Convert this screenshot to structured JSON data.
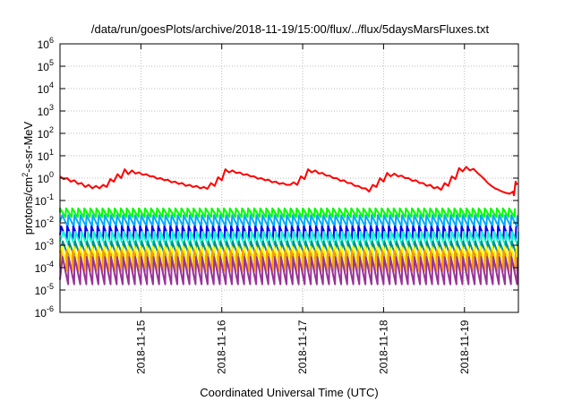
{
  "chart_data": {
    "type": "line",
    "title": "/data/run/goesPlots/archive/2018-11-19/15:00/flux/../flux/5daysMarsFluxes.txt",
    "xlabel": "Coordinated Universal Time (UTC)",
    "ylabel_parts": [
      "protons/cm",
      "2",
      "-s-sr-MeV"
    ],
    "y_scale": "log",
    "ylim": [
      1e-06,
      1000000.0
    ],
    "xlim": [
      "2018-11-14T00:00",
      "2018-11-19T16:00"
    ],
    "grid": true,
    "y_ticks": [
      {
        "base": "10",
        "exp": "-6",
        "value": 1e-06
      },
      {
        "base": "10",
        "exp": "-5",
        "value": 1e-05
      },
      {
        "base": "10",
        "exp": "-4",
        "value": 0.0001
      },
      {
        "base": "10",
        "exp": "-3",
        "value": 0.001
      },
      {
        "base": "10",
        "exp": "-2",
        "value": 0.01
      },
      {
        "base": "10",
        "exp": "-1",
        "value": 0.1
      },
      {
        "base": "10",
        "exp": "0",
        "value": 1
      },
      {
        "base": "10",
        "exp": "1",
        "value": 10
      },
      {
        "base": "10",
        "exp": "2",
        "value": 100
      },
      {
        "base": "10",
        "exp": "3",
        "value": 1000
      },
      {
        "base": "10",
        "exp": "4",
        "value": 10000
      },
      {
        "base": "10",
        "exp": "5",
        "value": 100000
      },
      {
        "base": "10",
        "exp": "6",
        "value": 1000000
      }
    ],
    "x_ticks": [
      {
        "label": "2018-11-15",
        "value": "2018-11-15T00:00"
      },
      {
        "label": "2018-11-16",
        "value": "2018-11-16T00:00"
      },
      {
        "label": "2018-11-17",
        "value": "2018-11-17T00:00"
      },
      {
        "label": "2018-11-18",
        "value": "2018-11-18T00:00"
      },
      {
        "label": "2018-11-19",
        "value": "2018-11-19T00:00"
      }
    ],
    "series": [
      {
        "color": "#ff0000",
        "values": [
          [
            "2018-11-14T00:00",
            1.2
          ],
          [
            "2018-11-14T01:04",
            0.9
          ],
          [
            "2018-11-14T02:08",
            1.0
          ],
          [
            "2018-11-14T03:12",
            0.7
          ],
          [
            "2018-11-14T04:16",
            0.8
          ],
          [
            "2018-11-14T05:20",
            0.55
          ],
          [
            "2018-11-14T06:24",
            0.6
          ],
          [
            "2018-11-14T07:28",
            0.4
          ],
          [
            "2018-11-14T08:32",
            0.5
          ],
          [
            "2018-11-14T09:36",
            0.35
          ],
          [
            "2018-11-14T10:40",
            0.45
          ],
          [
            "2018-11-14T11:44",
            0.35
          ],
          [
            "2018-11-14T12:48",
            0.5
          ],
          [
            "2018-11-14T13:52",
            0.4
          ],
          [
            "2018-11-14T14:56",
            0.9
          ],
          [
            "2018-11-14T16:00",
            0.7
          ],
          [
            "2018-11-14T17:04",
            1.5
          ],
          [
            "2018-11-14T18:08",
            1.0
          ],
          [
            "2018-11-14T19:12",
            2.5
          ],
          [
            "2018-11-14T20:16",
            1.5
          ],
          [
            "2018-11-14T21:20",
            2.2
          ],
          [
            "2018-11-14T22:24",
            1.6
          ],
          [
            "2018-11-14T23:28",
            1.8
          ],
          [
            "2018-11-15T00:32",
            1.4
          ],
          [
            "2018-11-15T01:36",
            1.5
          ],
          [
            "2018-11-15T02:40",
            1.2
          ],
          [
            "2018-11-15T03:44",
            1.2
          ],
          [
            "2018-11-15T04:48",
            0.95
          ],
          [
            "2018-11-15T05:52",
            1.0
          ],
          [
            "2018-11-15T06:56",
            0.8
          ],
          [
            "2018-11-15T08:00",
            0.85
          ],
          [
            "2018-11-15T09:04",
            0.65
          ],
          [
            "2018-11-15T10:08",
            0.7
          ],
          [
            "2018-11-15T11:12",
            0.55
          ],
          [
            "2018-11-15T12:16",
            0.6
          ],
          [
            "2018-11-15T13:20",
            0.45
          ],
          [
            "2018-11-15T14:24",
            0.5
          ],
          [
            "2018-11-15T15:28",
            0.4
          ],
          [
            "2018-11-15T16:32",
            0.45
          ],
          [
            "2018-11-15T17:36",
            0.35
          ],
          [
            "2018-11-15T18:40",
            0.4
          ],
          [
            "2018-11-15T19:44",
            0.33
          ],
          [
            "2018-11-15T20:48",
            0.6
          ],
          [
            "2018-11-15T21:52",
            0.45
          ],
          [
            "2018-11-15T22:56",
            1.1
          ],
          [
            "2018-11-16T00:00",
            0.8
          ],
          [
            "2018-11-16T01:04",
            2.5
          ],
          [
            "2018-11-16T02:08",
            1.8
          ],
          [
            "2018-11-16T03:12",
            2.2
          ],
          [
            "2018-11-16T04:16",
            1.7
          ],
          [
            "2018-11-16T05:20",
            1.8
          ],
          [
            "2018-11-16T06:24",
            1.4
          ],
          [
            "2018-11-16T07:28",
            1.5
          ],
          [
            "2018-11-16T08:32",
            1.2
          ],
          [
            "2018-11-16T09:36",
            1.2
          ],
          [
            "2018-11-16T10:40",
            0.95
          ],
          [
            "2018-11-16T11:44",
            1.0
          ],
          [
            "2018-11-16T12:48",
            0.8
          ],
          [
            "2018-11-16T13:52",
            0.85
          ],
          [
            "2018-11-16T14:56",
            0.65
          ],
          [
            "2018-11-16T16:00",
            0.7
          ],
          [
            "2018-11-16T17:04",
            0.55
          ],
          [
            "2018-11-16T18:08",
            0.6
          ],
          [
            "2018-11-16T19:12",
            0.5
          ],
          [
            "2018-11-16T20:16",
            0.5
          ],
          [
            "2018-11-16T21:20",
            0.65
          ],
          [
            "2018-11-16T22:24",
            0.5
          ],
          [
            "2018-11-16T23:28",
            1.2
          ],
          [
            "2018-11-17T00:32",
            0.9
          ],
          [
            "2018-11-17T01:36",
            2.5
          ],
          [
            "2018-11-17T02:40",
            1.8
          ],
          [
            "2018-11-17T03:44",
            2.2
          ],
          [
            "2018-11-17T04:48",
            1.6
          ],
          [
            "2018-11-17T05:52",
            1.7
          ],
          [
            "2018-11-17T06:56",
            1.3
          ],
          [
            "2018-11-17T08:00",
            1.3
          ],
          [
            "2018-11-17T09:04",
            1.0
          ],
          [
            "2018-11-17T10:08",
            1.0
          ],
          [
            "2018-11-17T11:12",
            0.75
          ],
          [
            "2018-11-17T12:16",
            0.8
          ],
          [
            "2018-11-17T13:20",
            0.6
          ],
          [
            "2018-11-17T14:24",
            0.6
          ],
          [
            "2018-11-17T15:28",
            0.45
          ],
          [
            "2018-11-17T16:32",
            0.45
          ],
          [
            "2018-11-17T17:36",
            0.35
          ],
          [
            "2018-11-17T18:40",
            0.35
          ],
          [
            "2018-11-17T19:44",
            0.25
          ],
          [
            "2018-11-17T20:48",
            0.5
          ],
          [
            "2018-11-17T21:52",
            0.4
          ],
          [
            "2018-11-17T22:56",
            1.0
          ],
          [
            "2018-11-18T00:00",
            0.7
          ],
          [
            "2018-11-18T01:04",
            1.7
          ],
          [
            "2018-11-18T02:08",
            1.2
          ],
          [
            "2018-11-18T03:12",
            1.6
          ],
          [
            "2018-11-18T04:16",
            1.2
          ],
          [
            "2018-11-18T05:20",
            1.3
          ],
          [
            "2018-11-18T06:24",
            1.0
          ],
          [
            "2018-11-18T07:28",
            1.0
          ],
          [
            "2018-11-18T08:32",
            0.75
          ],
          [
            "2018-11-18T09:36",
            0.8
          ],
          [
            "2018-11-18T10:40",
            0.6
          ],
          [
            "2018-11-18T11:44",
            0.6
          ],
          [
            "2018-11-18T12:48",
            0.45
          ],
          [
            "2018-11-18T13:52",
            0.5
          ],
          [
            "2018-11-18T14:56",
            0.35
          ],
          [
            "2018-11-18T16:00",
            0.4
          ],
          [
            "2018-11-18T17:04",
            0.3
          ],
          [
            "2018-11-18T18:08",
            0.6
          ],
          [
            "2018-11-18T19:12",
            0.45
          ],
          [
            "2018-11-18T20:16",
            1.2
          ],
          [
            "2018-11-18T21:20",
            0.9
          ],
          [
            "2018-11-18T22:24",
            2.8
          ],
          [
            "2018-11-18T23:28",
            2.0
          ],
          [
            "2018-11-19T00:32",
            3.2
          ],
          [
            "2018-11-19T01:36",
            2.2
          ],
          [
            "2018-11-19T02:40",
            2.6
          ],
          [
            "2018-11-19T03:44",
            1.8
          ],
          [
            "2018-11-19T04:48",
            1.3
          ],
          [
            "2018-11-19T05:52",
            0.9
          ],
          [
            "2018-11-19T06:56",
            0.6
          ],
          [
            "2018-11-19T08:00",
            0.45
          ],
          [
            "2018-11-19T09:04",
            0.35
          ],
          [
            "2018-11-19T10:08",
            0.3
          ],
          [
            "2018-11-19T11:12",
            0.25
          ],
          [
            "2018-11-19T12:16",
            0.22
          ],
          [
            "2018-11-19T13:20",
            0.2
          ],
          [
            "2018-11-19T14:24",
            0.25
          ],
          [
            "2018-11-19T14:40",
            0.17
          ],
          [
            "2018-11-19T15:10",
            0.7
          ],
          [
            "2018-11-19T15:40",
            0.5
          ]
        ]
      },
      {
        "color": "#00ff00",
        "sawtooth": {
          "start": "2018-11-14T00:00",
          "period_hours": 1.8,
          "high": 0.045,
          "low": 0.018,
          "end": "2018-11-19T16:00"
        }
      },
      {
        "color": "#00aaff",
        "sawtooth": {
          "start": "2018-11-14T00:40",
          "period_hours": 1.8,
          "high": 0.022,
          "low": 0.007,
          "end": "2018-11-19T16:00"
        }
      },
      {
        "color": "#0000ff",
        "sawtooth": {
          "start": "2018-11-14T00:20",
          "period_hours": 1.8,
          "high": 0.007,
          "low": 0.0018,
          "end": "2018-11-19T16:00"
        }
      },
      {
        "color": "#00ffcc",
        "sawtooth": {
          "start": "2018-11-14T01:00",
          "period_hours": 1.8,
          "high": 0.004,
          "low": 0.0009,
          "end": "2018-11-19T16:00"
        }
      },
      {
        "color": "#008c8c",
        "sawtooth": {
          "start": "2018-11-14T00:50",
          "period_hours": 1.8,
          "high": 0.0015,
          "low": 0.0003,
          "end": "2018-11-19T16:00"
        }
      },
      {
        "color": "#ffff00",
        "sawtooth": {
          "start": "2018-11-14T00:30",
          "period_hours": 1.8,
          "high": 0.0009,
          "low": 0.00012,
          "end": "2018-11-19T16:00"
        }
      },
      {
        "color": "#ff9900",
        "sawtooth": {
          "start": "2018-11-14T00:10",
          "period_hours": 1.8,
          "high": 0.0006,
          "low": 7e-05,
          "end": "2018-11-19T16:00"
        }
      },
      {
        "color": "#993399",
        "sawtooth": {
          "start": "2018-11-14T00:45",
          "period_hours": 1.8,
          "high": 0.0003,
          "low": 1.8e-05,
          "end": "2018-11-19T16:00"
        }
      }
    ]
  }
}
